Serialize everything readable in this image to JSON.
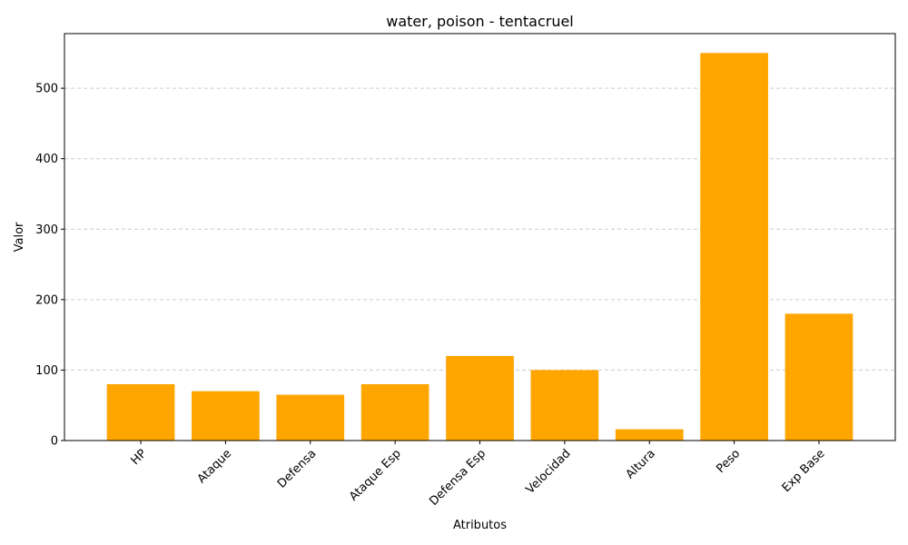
{
  "chart_data": {
    "type": "bar",
    "title": "water, poison - tentacruel",
    "xlabel": "Atributos",
    "ylabel": "Valor",
    "categories": [
      "HP",
      "Ataque",
      "Defensa",
      "Ataque Esp",
      "Defensa Esp",
      "Velocidad",
      "Altura",
      "Peso",
      "Exp Base"
    ],
    "values": [
      80,
      70,
      65,
      80,
      120,
      100,
      16,
      550,
      180
    ],
    "ylim": [
      0,
      577.5
    ],
    "yticks": [
      0,
      100,
      200,
      300,
      400,
      500
    ],
    "grid": "y-dashed",
    "bar_color": "#FFA500",
    "legend": "none"
  }
}
